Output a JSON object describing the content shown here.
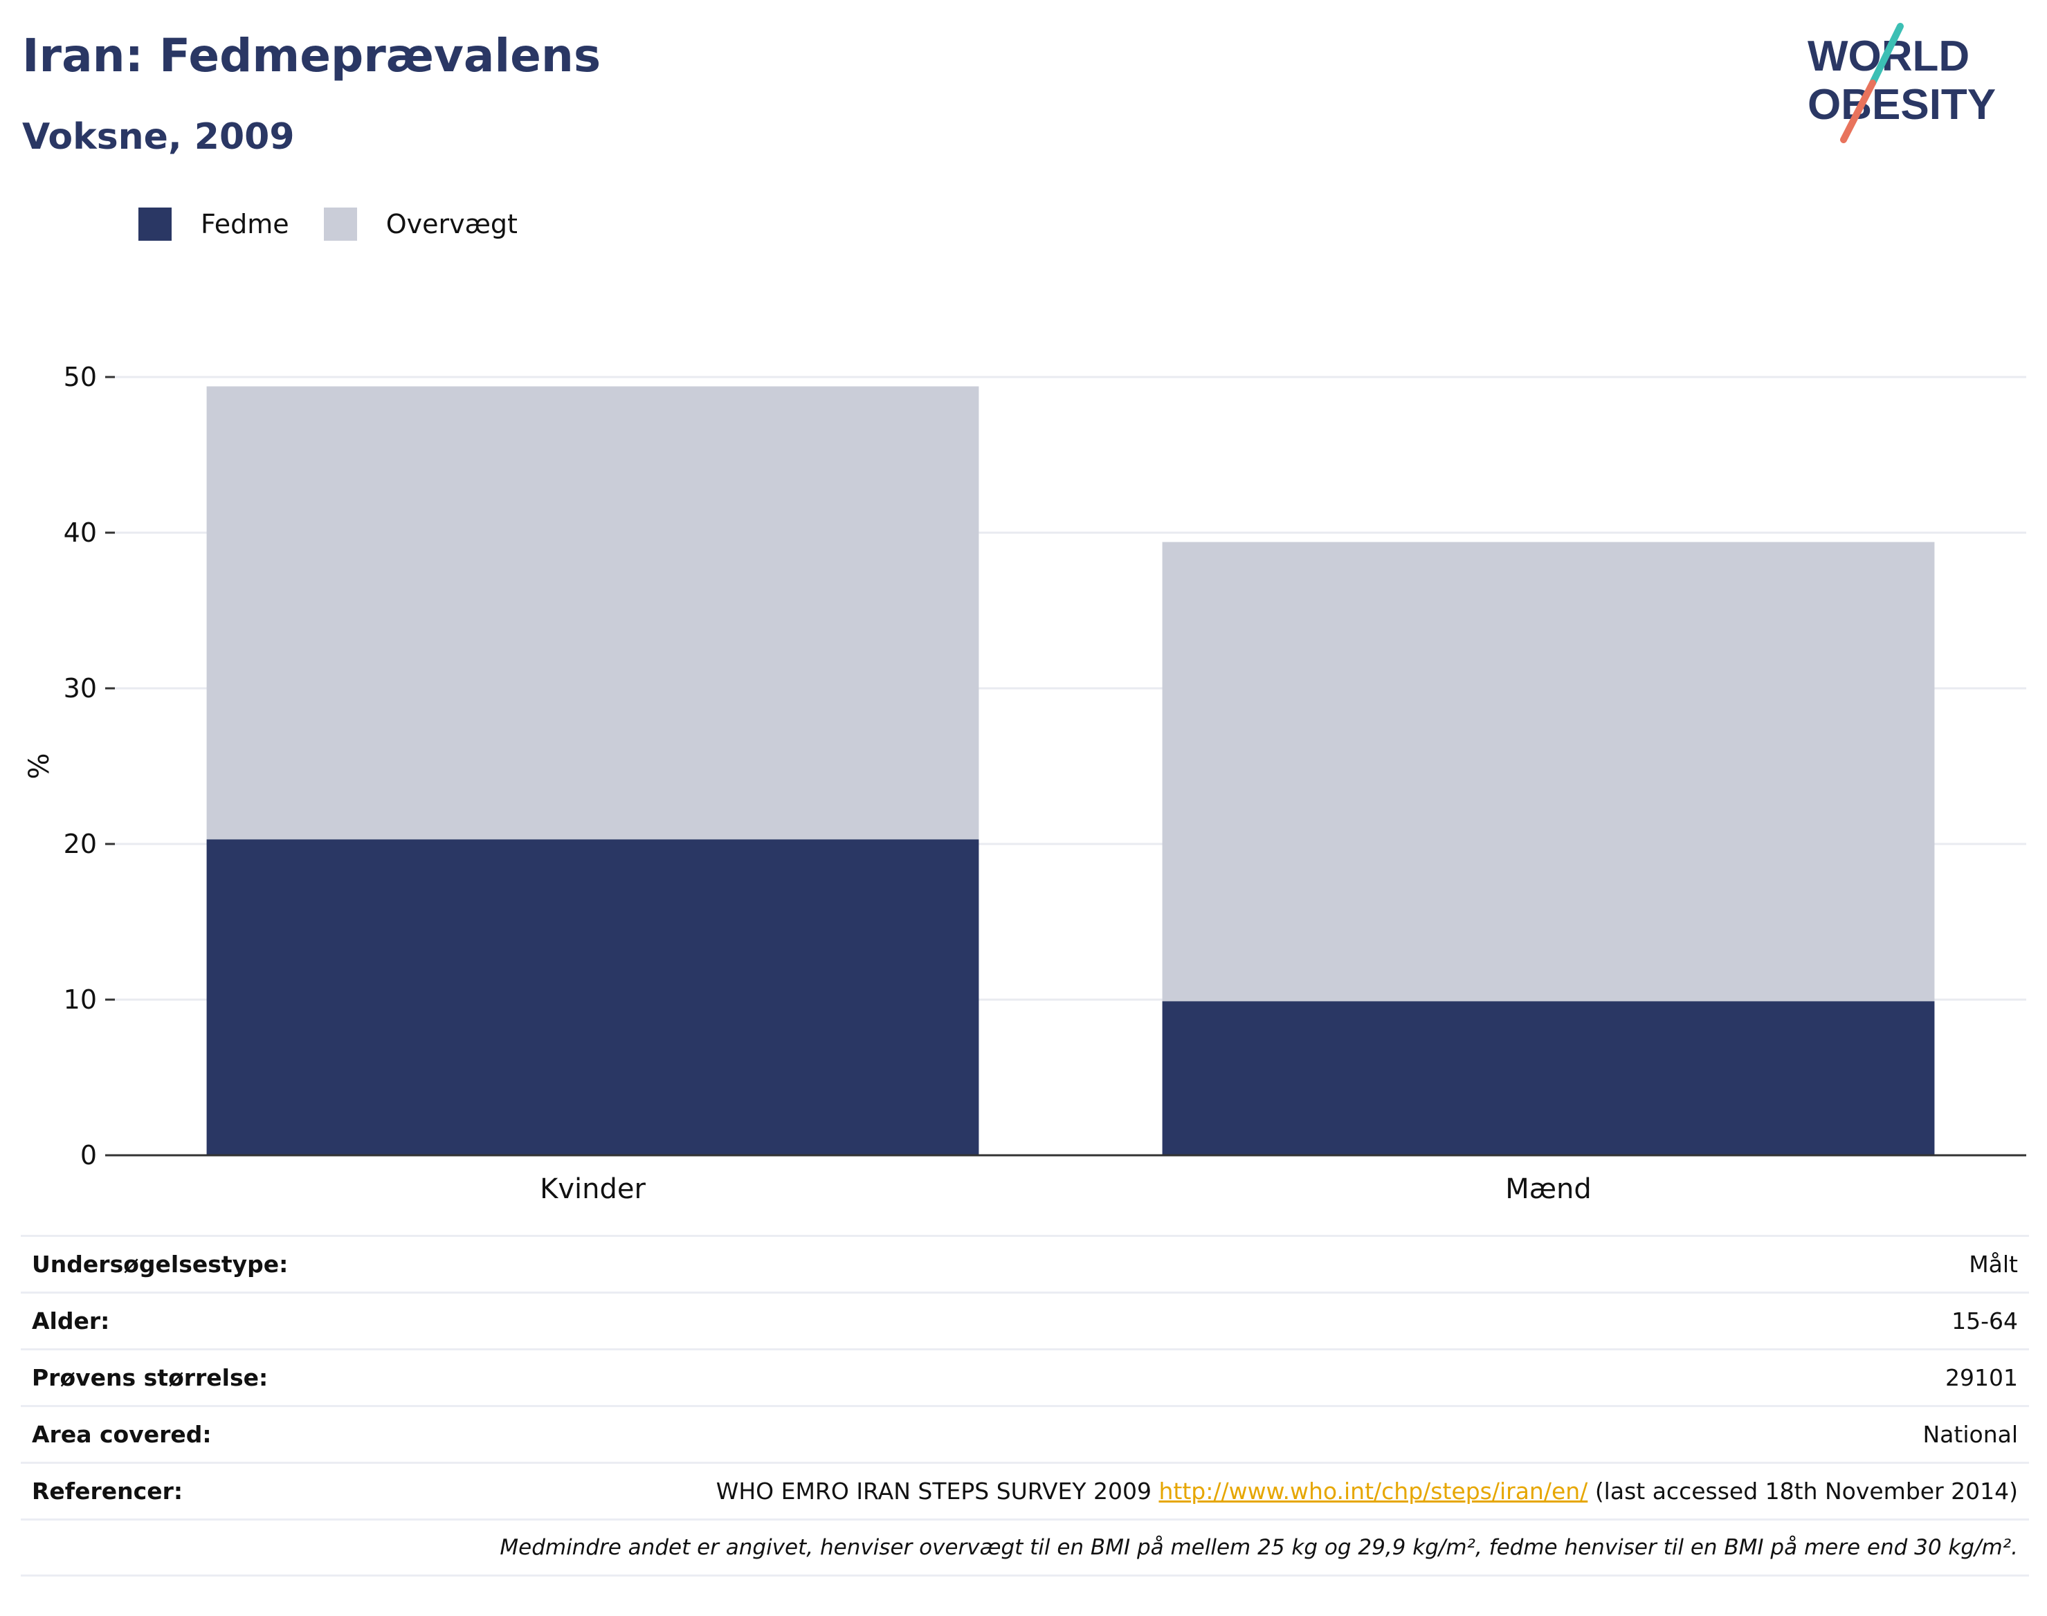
{
  "header": {
    "title": "Iran: Fedmeprævalens",
    "subtitle": "Voksne, 2009"
  },
  "logo": {
    "line1": "WORLD",
    "line2": "OBESITY",
    "accent_teal": "#3cbfb4",
    "accent_coral": "#e8735c",
    "text_color": "#2a3764"
  },
  "colors": {
    "obesity": "#2a3764",
    "overweight": "#cacdd8",
    "grid": "#e9ebf0",
    "axis": "#333333"
  },
  "chart_data": {
    "type": "bar",
    "stacked": true,
    "categories": [
      "Kvinder",
      "Mænd"
    ],
    "series": [
      {
        "name": "Fedme",
        "values": [
          20.3,
          9.9
        ],
        "color": "#2a3764"
      },
      {
        "name": "Overvægt",
        "values": [
          29.1,
          29.5
        ],
        "color": "#cacdd8"
      }
    ],
    "ylabel": "%",
    "ylim": [
      0,
      50
    ],
    "yticks": [
      0,
      10,
      20,
      30,
      40,
      50
    ],
    "grid": true,
    "legend_position": "top-left"
  },
  "meta": {
    "rows": [
      {
        "label": "Undersøgelsestype:",
        "value": "Målt"
      },
      {
        "label": "Alder:",
        "value": "15-64"
      },
      {
        "label": "Prøvens størrelse:",
        "value": "29101"
      },
      {
        "label": "Area covered:",
        "value": "National"
      }
    ],
    "reference": {
      "label": "Referencer:",
      "prefix": "WHO EMRO IRAN STEPS SURVEY 2009",
      "link": "http://www.who.int/chp/steps/iran/en/",
      "suffix": "(last accessed 18th November 2014)"
    },
    "note": "Medmindre andet er angivet, henviser overvægt til en BMI på mellem 25 kg og 29,9 kg/m², fedme henviser til en BMI på mere end 30 kg/m²."
  }
}
